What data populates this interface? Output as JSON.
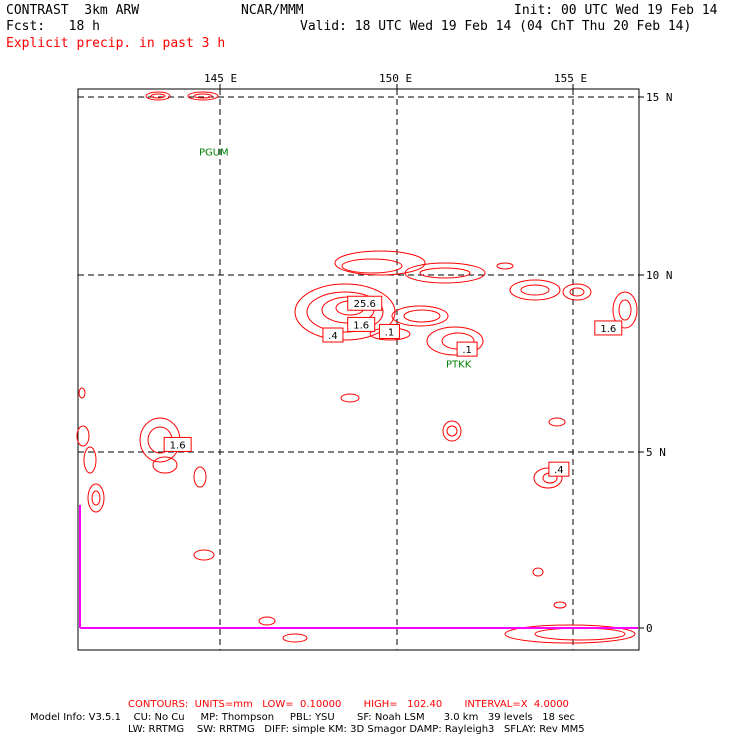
{
  "header": {
    "model_title": "CONTRAST  3km ARW",
    "center_title": "NCAR/MMM",
    "init": "Init: 00 UTC Wed 19 Feb 14",
    "fcst": "Fcst:   18 h",
    "valid": "Valid: 18 UTC Wed 19 Feb 14 (04 ChT Thu 20 Feb 14)",
    "field": "Explicit precip. in past 3 h"
  },
  "map": {
    "lon_labels": [
      "145 E",
      "150 E",
      "155 E"
    ],
    "lat_labels": [
      "15 N",
      "10 N",
      "5 N",
      "0"
    ],
    "lon_values": [
      145,
      150,
      155
    ],
    "lat_values": [
      15,
      10,
      5,
      0
    ],
    "extent": {
      "lon_min": 141,
      "lon_max": 156.8,
      "lat_min": -0.6,
      "lat_max": 15.1
    },
    "stations": [
      {
        "label": "PGUM",
        "lon": 144.8,
        "lat": 13.5
      },
      {
        "label": "PTKK",
        "lon": 151.8,
        "lat": 7.5
      }
    ],
    "contour_labels": [
      {
        "text": "25.6",
        "lon": 149.1,
        "lat": 9.2
      },
      {
        "text": "1.6",
        "lon": 149.0,
        "lat": 8.6
      },
      {
        "text": ".4",
        "lon": 148.2,
        "lat": 8.3
      },
      {
        "text": ".1",
        "lon": 149.8,
        "lat": 8.4
      },
      {
        "text": ".1",
        "lon": 152.0,
        "lat": 7.9
      },
      {
        "text": "1.6",
        "lon": 156.0,
        "lat": 8.5
      },
      {
        "text": "1.6",
        "lon": 143.8,
        "lat": 5.2
      },
      {
        "text": ".4",
        "lon": 154.6,
        "lat": 4.5
      }
    ],
    "colors": {
      "contour": "#ff0000",
      "station": "#008000",
      "boundary": "#ff00ff",
      "grid": "#000000"
    }
  },
  "footer": {
    "contours_line": "CONTOURS:  UNITS=mm   LOW=  0.10000       HIGH=   102.40       INTERVAL=X  4.0000",
    "model_info_1": "Model Info: V3.5.1    CU: No Cu     MP: Thompson     PBL: YSU       SF: Noah LSM      3.0 km   39 levels   18 sec",
    "model_info_2": "LW: RRTMG    SW: RRTMG   DIFF: simple KM: 3D Smagor DAMP: Rayleigh3   SFLAY: Rev MM5"
  }
}
